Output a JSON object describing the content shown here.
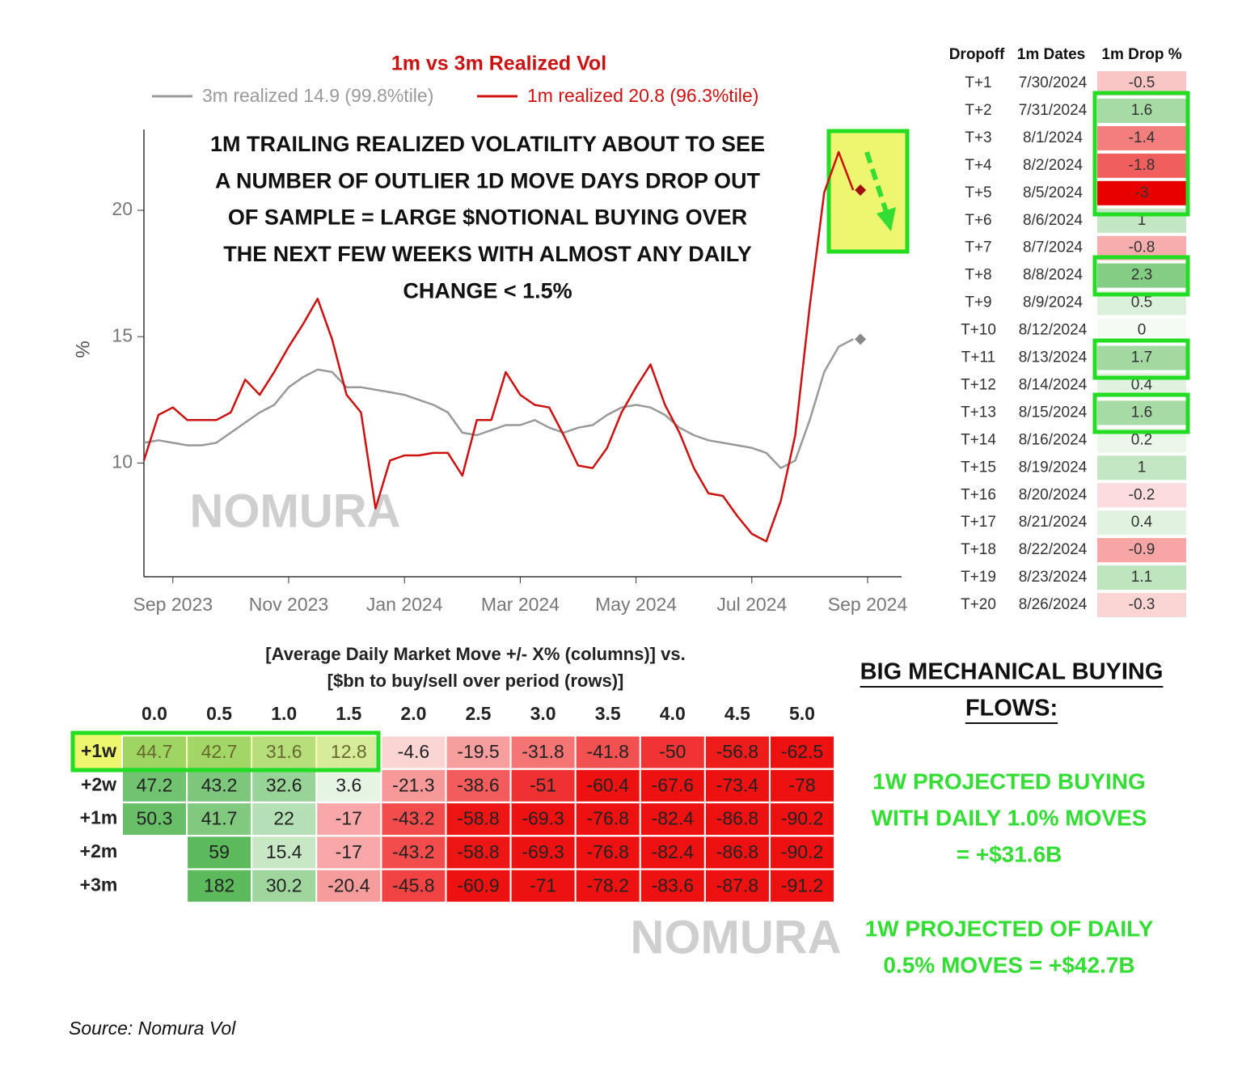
{
  "chart_data": {
    "type": "line",
    "title": "1m vs 3m Realized Vol",
    "y_label": "%",
    "categories": [
      null,
      null,
      "Sep 2023",
      null,
      null,
      null,
      null,
      null,
      null,
      null,
      "Nov 2023",
      null,
      null,
      null,
      null,
      null,
      null,
      null,
      "Jan 2024",
      null,
      null,
      null,
      null,
      null,
      null,
      null,
      "Mar 2024",
      null,
      null,
      null,
      null,
      null,
      null,
      null,
      "May 2024",
      null,
      null,
      null,
      null,
      null,
      null,
      null,
      "Jul 2024",
      null,
      null,
      null,
      null,
      null,
      null,
      null,
      "Sep 2024",
      null,
      null
    ],
    "series": [
      {
        "name": "3m realized 14.9 (99.8%tile)",
        "color": "#999999",
        "values": [
          10.8,
          10.9,
          10.8,
          10.7,
          10.7,
          10.8,
          11.2,
          11.6,
          12.0,
          12.3,
          13.0,
          13.4,
          13.7,
          13.6,
          13.0,
          13.0,
          12.9,
          12.8,
          12.7,
          12.5,
          12.3,
          12.0,
          11.2,
          11.1,
          11.3,
          11.5,
          11.5,
          11.7,
          11.4,
          11.2,
          11.4,
          11.5,
          11.9,
          12.2,
          12.3,
          12.2,
          11.9,
          11.4,
          11.1,
          10.9,
          10.8,
          10.7,
          10.6,
          10.4,
          9.8,
          10.1,
          11.7,
          13.6,
          14.6,
          14.9,
          null,
          null,
          null
        ]
      },
      {
        "name": "1m realized 20.8 (96.3%tile)",
        "color": "#cc1111",
        "values": [
          10.1,
          11.9,
          12.2,
          11.7,
          11.7,
          11.7,
          12.0,
          13.3,
          12.7,
          13.6,
          14.6,
          15.5,
          16.5,
          14.9,
          12.7,
          12.0,
          8.2,
          10.1,
          10.3,
          10.3,
          10.4,
          10.4,
          9.5,
          11.7,
          11.7,
          13.6,
          12.7,
          12.3,
          12.2,
          11.1,
          9.9,
          9.8,
          10.6,
          12.0,
          13.0,
          13.9,
          12.3,
          11.2,
          9.8,
          8.8,
          8.7,
          7.9,
          7.2,
          6.9,
          8.5,
          11.1,
          16.2,
          20.7,
          22.3,
          20.8,
          null,
          null,
          null
        ]
      }
    ],
    "ylim": [
      5.5,
      23.2
    ],
    "yticks": [
      10,
      15,
      20
    ],
    "grid": false,
    "annotation": [
      "1M TRAILING REALIZED VOLATILITY ABOUT TO SEE",
      "A NUMBER OF OUTLIER 1D MOVE DAYS DROP OUT",
      "OF SAMPLE = LARGE $NOTIONAL BUYING OVER",
      "THE NEXT FEW WEEKS WITH ALMOST ANY DAILY",
      "CHANGE < 1.5%"
    ]
  },
  "dropoff_table": {
    "columns": [
      "Dropoff",
      "1m Dates",
      "1m Drop %"
    ],
    "rows": [
      [
        "T+1",
        "7/30/2024",
        -0.5
      ],
      [
        "T+2",
        "7/31/2024",
        1.6
      ],
      [
        "T+3",
        "8/1/2024",
        -1.4
      ],
      [
        "T+4",
        "8/2/2024",
        -1.8
      ],
      [
        "T+5",
        "8/5/2024",
        -3
      ],
      [
        "T+6",
        "8/6/2024",
        1
      ],
      [
        "T+7",
        "8/7/2024",
        -0.8
      ],
      [
        "T+8",
        "8/8/2024",
        2.3
      ],
      [
        "T+9",
        "8/9/2024",
        0.5
      ],
      [
        "T+10",
        "8/12/2024",
        0
      ],
      [
        "T+11",
        "8/13/2024",
        1.7
      ],
      [
        "T+12",
        "8/14/2024",
        0.4
      ],
      [
        "T+13",
        "8/15/2024",
        1.6
      ],
      [
        "T+14",
        "8/16/2024",
        0.2
      ],
      [
        "T+15",
        "8/19/2024",
        1
      ],
      [
        "T+16",
        "8/20/2024",
        -0.2
      ],
      [
        "T+17",
        "8/21/2024",
        0.4
      ],
      [
        "T+18",
        "8/22/2024",
        -0.9
      ],
      [
        "T+19",
        "8/23/2024",
        1.1
      ],
      [
        "T+20",
        "8/26/2024",
        -0.3
      ]
    ]
  },
  "flow_table": {
    "title": [
      "[Average Daily Market Move +/- X% (columns)] vs.",
      "[$bn to buy/sell over period (rows)]"
    ],
    "columns": [
      "0.0",
      "0.5",
      "1.0",
      "1.5",
      "2.0",
      "2.5",
      "3.0",
      "3.5",
      "4.0",
      "4.5",
      "5.0"
    ],
    "row_labels": [
      "+1w",
      "+2w",
      "+1m",
      "+2m",
      "+3m"
    ],
    "values": [
      [
        44.7,
        42.7,
        31.6,
        12.8,
        -4.6,
        -19.5,
        -31.8,
        -41.8,
        -50,
        -56.8,
        -62.5
      ],
      [
        47.2,
        43.2,
        32.6,
        3.6,
        -21.3,
        -38.6,
        -51,
        -60.4,
        -67.6,
        -73.4,
        -78
      ],
      [
        50.3,
        41.7,
        22,
        -17,
        -43.2,
        -58.8,
        -69.3,
        -76.8,
        -82.4,
        -86.8,
        -90.2
      ],
      [
        null,
        59,
        15.4,
        -17,
        -43.2,
        -58.8,
        -69.3,
        -76.8,
        -82.4,
        -86.8,
        -90.2
      ],
      [
        null,
        182,
        30.2,
        -20.4,
        -45.8,
        -60.9,
        -71,
        -78.2,
        -83.6,
        -87.8,
        -91.2
      ]
    ]
  },
  "callout": {
    "heading": [
      "BIG MECHANICAL BUYING",
      "FLOWS:"
    ],
    "note_1": [
      "1W PROJECTED BUYING",
      "WITH DAILY 1.0% MOVES",
      "= +$31.6B"
    ],
    "note_2": [
      "1W PROJECTED OF DAILY",
      "0.5% MOVES = +$42.7B"
    ]
  },
  "watermark": "NOMURA",
  "source": "Source: Nomura Vol"
}
